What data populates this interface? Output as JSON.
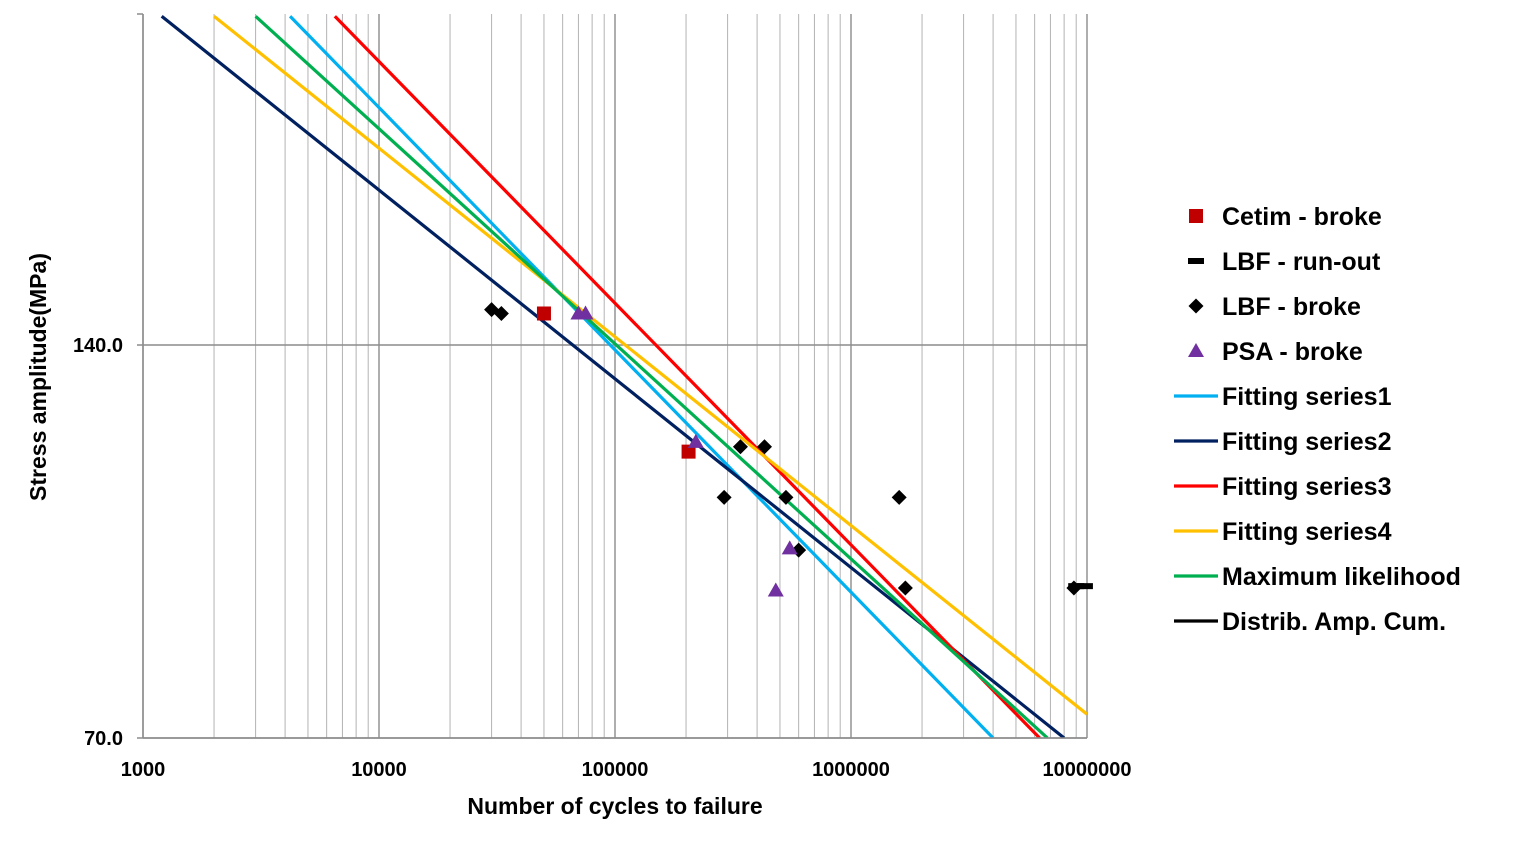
{
  "chart_data": {
    "type": "scatter",
    "xlabel": "Number of cycles to failure",
    "ylabel": "Stress amplitude(MPa)",
    "x_scale": "log",
    "y_scale": "log",
    "xlim": [
      1000,
      10000000
    ],
    "ylim": [
      70,
      251
    ],
    "x_ticks": [
      1000,
      10000,
      100000,
      1000000,
      10000000
    ],
    "x_tick_labels": [
      "1000",
      "10000",
      "100000",
      "1000000",
      "10000000"
    ],
    "y_ticks": [
      70,
      140
    ],
    "y_tick_labels": [
      "70.0",
      "140.0"
    ],
    "grid": true,
    "legend_position": "right",
    "series": [
      {
        "name": "Cetim - broke",
        "kind": "marker",
        "marker": "square",
        "color": "#C00000",
        "x": [
          50000,
          205000
        ],
        "y": [
          148,
          116
        ]
      },
      {
        "name": "LBF - run-out",
        "kind": "marker",
        "marker": "dash",
        "color": "#000000",
        "x": [
          9000000,
          9800000
        ],
        "y": [
          91.5,
          91.5
        ]
      },
      {
        "name": "LBF - broke",
        "kind": "marker",
        "marker": "diamond",
        "color": "#000000",
        "x": [
          30000,
          33000,
          290000,
          340000,
          430000,
          530000,
          600000,
          1600000,
          1700000,
          8800000
        ],
        "y": [
          149,
          148,
          107,
          117,
          117,
          107,
          97.5,
          107,
          91.2,
          91.2
        ]
      },
      {
        "name": "PSA - broke",
        "kind": "marker",
        "marker": "triangle",
        "color": "#7030A0",
        "x": [
          70000,
          75000,
          220000,
          480000,
          550000
        ],
        "y": [
          148,
          148,
          118,
          90.8,
          97.8
        ]
      },
      {
        "name": "Fitting series1",
        "kind": "line",
        "color": "#00B0F0",
        "x": [
          4200,
          4000000
        ],
        "y": [
          250,
          70
        ]
      },
      {
        "name": "Fitting series2",
        "kind": "line",
        "color": "#002060",
        "x": [
          1200,
          8000000
        ],
        "y": [
          250,
          70
        ]
      },
      {
        "name": "Fitting series3",
        "kind": "line",
        "color": "#FF0000",
        "x": [
          6500,
          6300000
        ],
        "y": [
          250,
          70
        ]
      },
      {
        "name": "Fitting series4",
        "kind": "line",
        "color": "#FFC000",
        "x": [
          2000,
          10000000
        ],
        "y": [
          250,
          73
        ]
      },
      {
        "name": "Maximum likelihood",
        "kind": "line",
        "color": "#00B050",
        "x": [
          3000,
          6800000
        ],
        "y": [
          250,
          70
        ]
      },
      {
        "name": "Distrib. Amp. Cum.",
        "kind": "line",
        "color": "#000000",
        "x": [],
        "y": []
      }
    ]
  }
}
